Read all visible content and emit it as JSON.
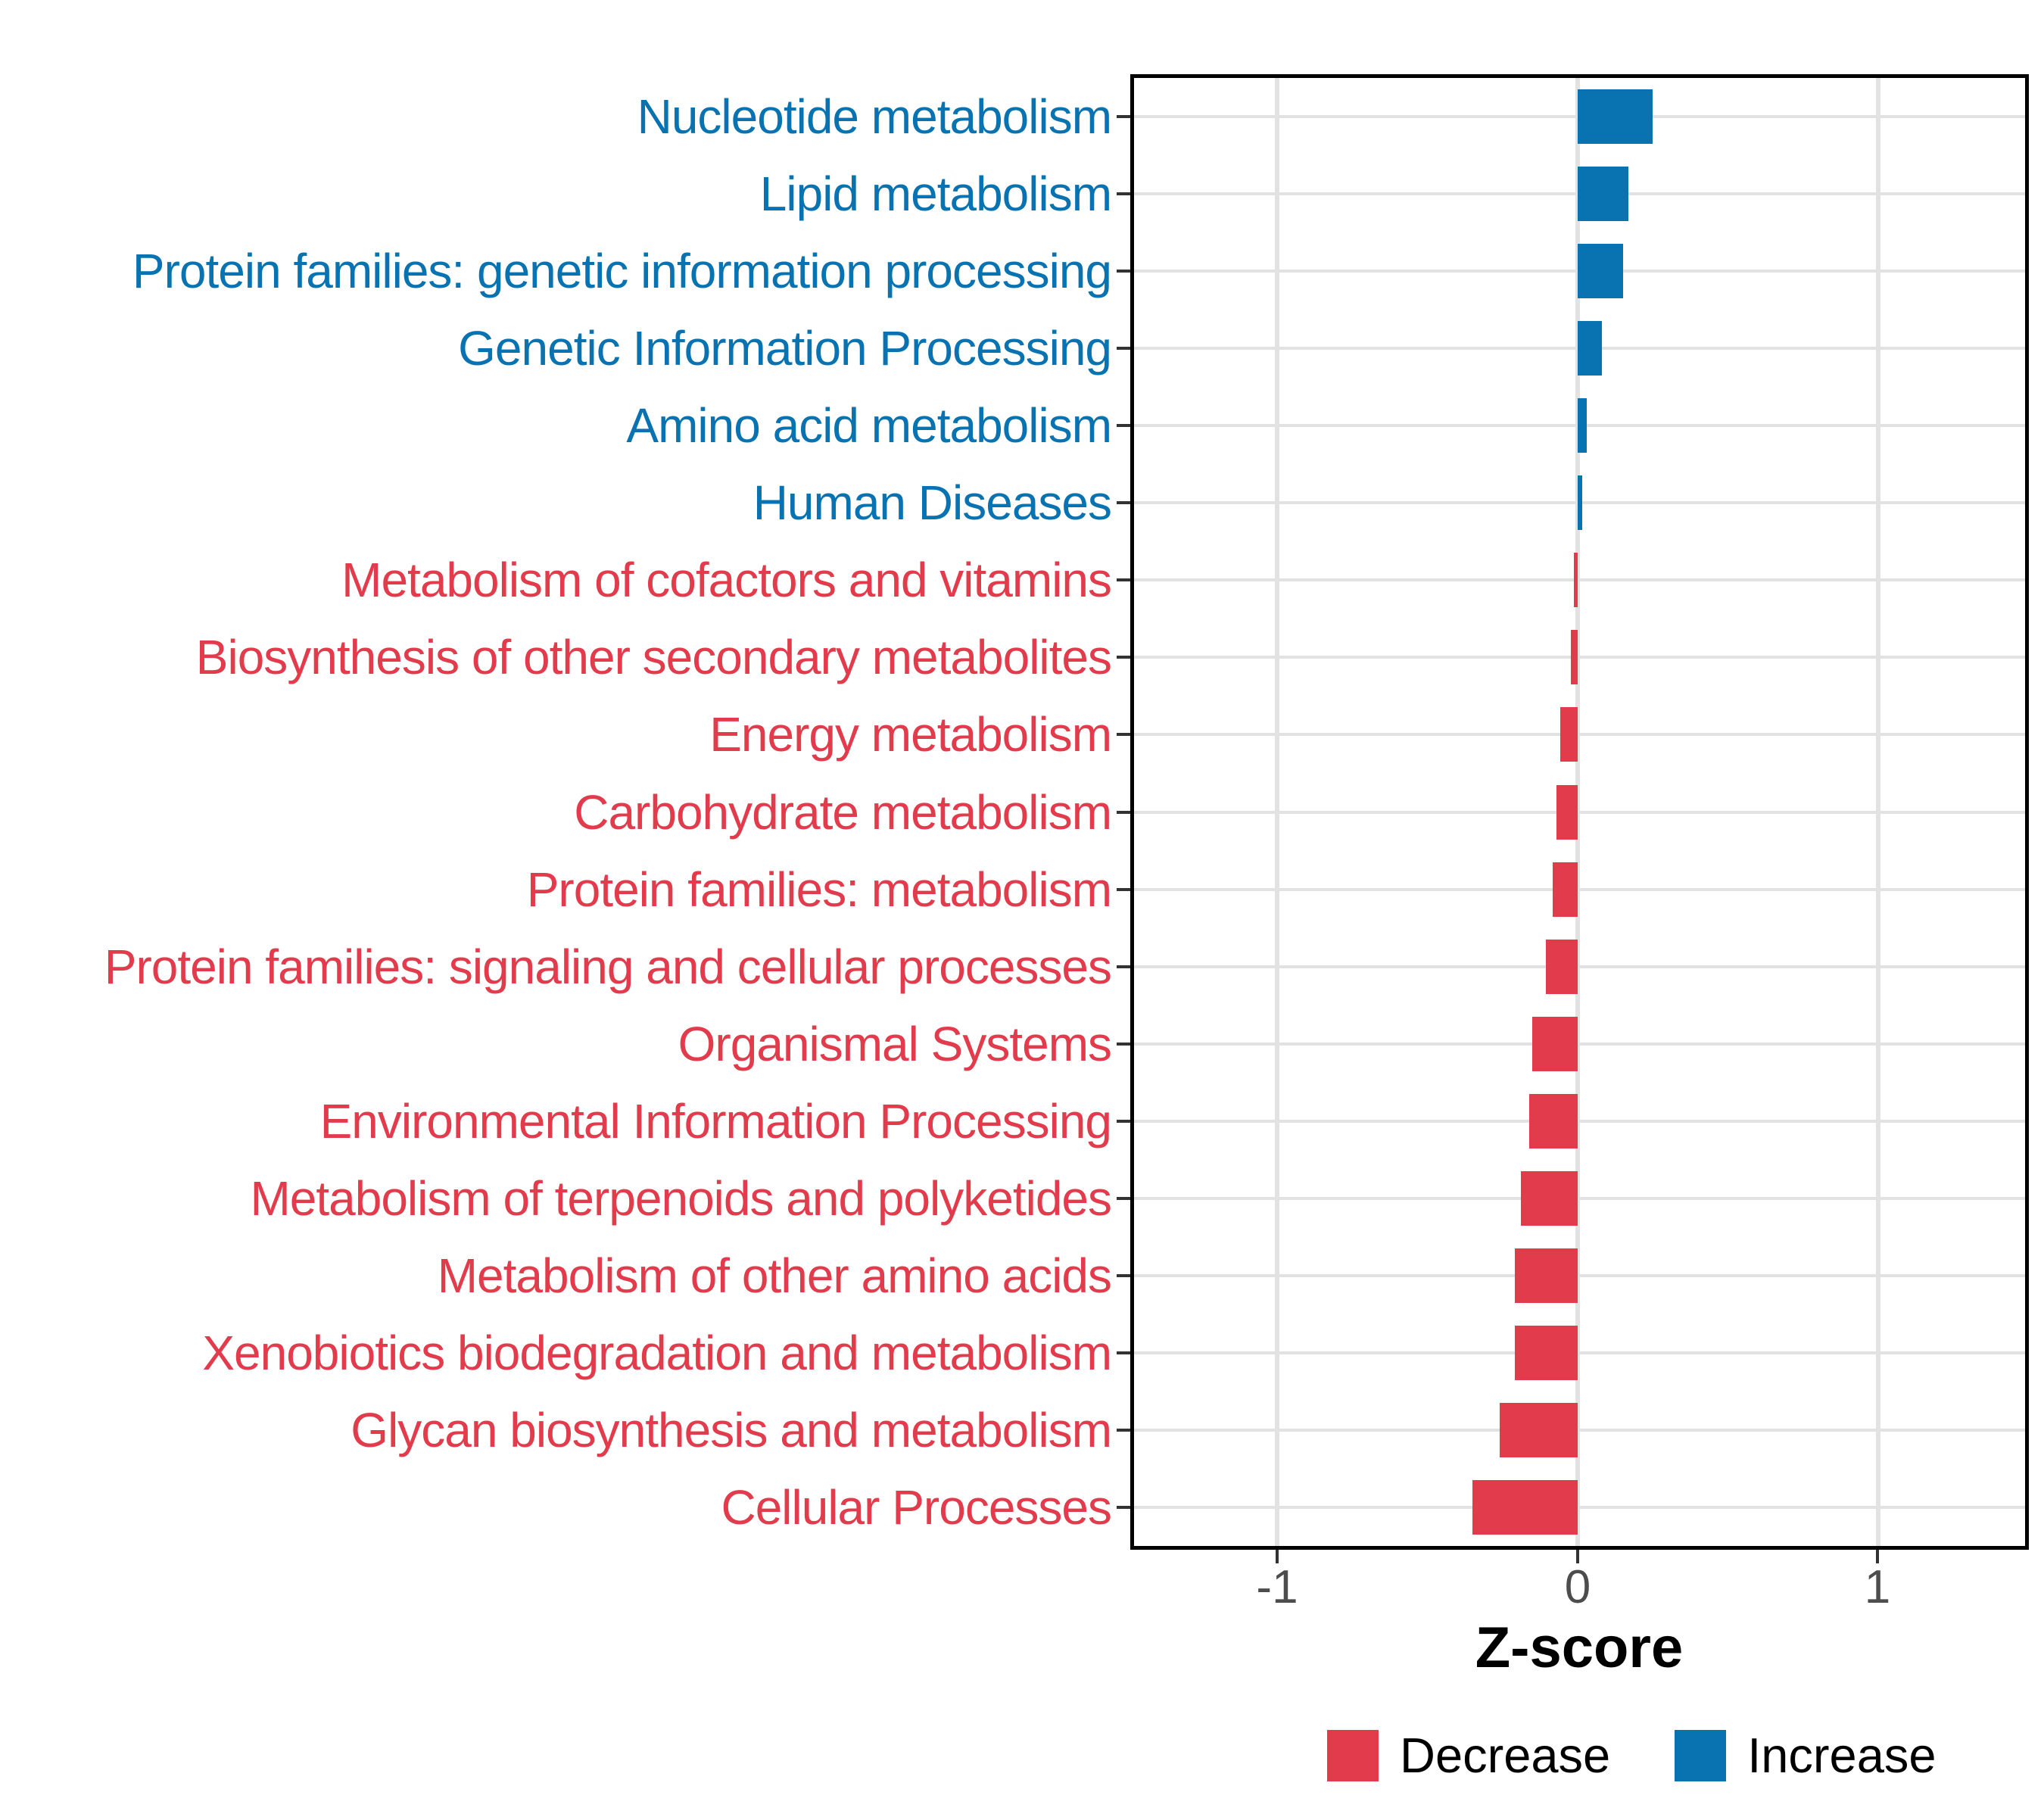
{
  "figure": {
    "title": "",
    "xlabel": "Z-score",
    "x_tick_labels": [
      "-1",
      "0",
      "1"
    ]
  },
  "colors": {
    "increase": "#0973B2",
    "decrease": "#E23B4C",
    "grid": "#E2E2E2",
    "axis_text": "#4D4D4D",
    "tick_mark": "#333333",
    "panel_border": "#000000",
    "background": "#FFFFFF"
  },
  "legend": {
    "items": [
      {
        "label": "Decrease",
        "color": "#E23B4C"
      },
      {
        "label": "Increase",
        "color": "#0973B2"
      }
    ],
    "position": "bottom-right"
  },
  "chart_data": {
    "type": "bar",
    "orientation": "horizontal",
    "title": "",
    "xlabel": "Z-score",
    "ylabel": "",
    "xlim": [
      -1.49,
      1.49
    ],
    "x_ticks": [
      -1,
      0,
      1
    ],
    "grid": "major-only",
    "bar_width_fraction": 0.7,
    "legend_position": "bottom-right",
    "categories": [
      "Nucleotide metabolism",
      "Lipid metabolism",
      "Protein families: genetic information processing",
      "Genetic Information Processing",
      "Amino acid metabolism",
      "Human Diseases",
      "Metabolism of cofactors and vitamins",
      "Biosynthesis of other secondary metabolites",
      "Energy metabolism",
      "Carbohydrate metabolism",
      "Protein families: metabolism",
      "Protein families: signaling and cellular processes",
      "Organismal Systems",
      "Environmental Information Processing",
      "Metabolism of terpenoids and polyketides",
      "Metabolism of other amino acids",
      "Xenobiotics biodegradation and metabolism",
      "Glycan biosynthesis and metabolism",
      "Cellular Processes"
    ],
    "values": [
      0.25,
      0.17,
      0.15,
      0.08,
      0.03,
      0.015,
      -0.012,
      -0.022,
      -0.057,
      -0.07,
      -0.082,
      -0.105,
      -0.15,
      -0.162,
      -0.19,
      -0.21,
      -0.21,
      -0.26,
      -0.35
    ],
    "groups": [
      "Increase",
      "Increase",
      "Increase",
      "Increase",
      "Increase",
      "Increase",
      "Decrease",
      "Decrease",
      "Decrease",
      "Decrease",
      "Decrease",
      "Decrease",
      "Decrease",
      "Decrease",
      "Decrease",
      "Decrease",
      "Decrease",
      "Decrease",
      "Decrease"
    ]
  }
}
